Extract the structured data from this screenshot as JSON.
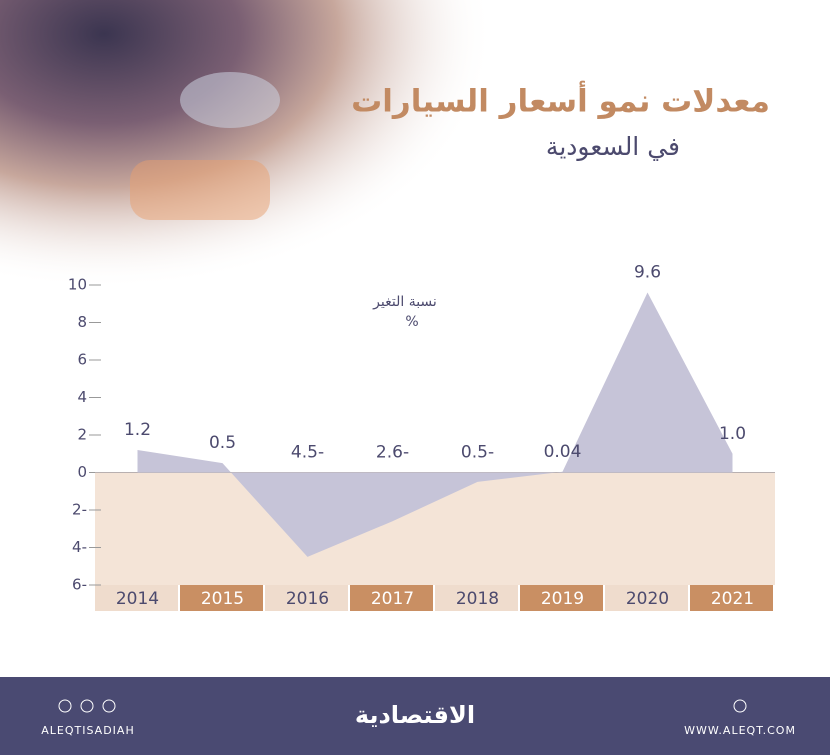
{
  "chart_data": {
    "type": "area",
    "title": "معدلات نمو أسعار السيارات",
    "subtitle": "في السعودية",
    "y_label": "نسبة التغير",
    "y_unit": "%",
    "categories": [
      "2014",
      "2015",
      "2016",
      "2017",
      "2018",
      "2019",
      "2020",
      "2021"
    ],
    "values": [
      1.2,
      0.5,
      -4.5,
      -2.6,
      -0.5,
      0.04,
      9.6,
      1.0
    ],
    "value_labels": [
      "1.2",
      "0.5",
      "4.5-",
      "2.6-",
      "0.5-",
      "0.04",
      "9.6",
      "1.0"
    ],
    "color": "#c6c4d8",
    "ylim": [
      -6,
      10
    ],
    "yticks": [
      {
        "value": -6,
        "label": "6-"
      },
      {
        "value": -4,
        "label": "4-"
      },
      {
        "value": -2,
        "label": "2-"
      },
      0,
      2,
      4,
      6,
      8,
      10
    ]
  },
  "footer": {
    "handle": "ALEQTISADIAH",
    "brand": "الاقتصادية",
    "website": "WWW.ALEQT.COM"
  }
}
